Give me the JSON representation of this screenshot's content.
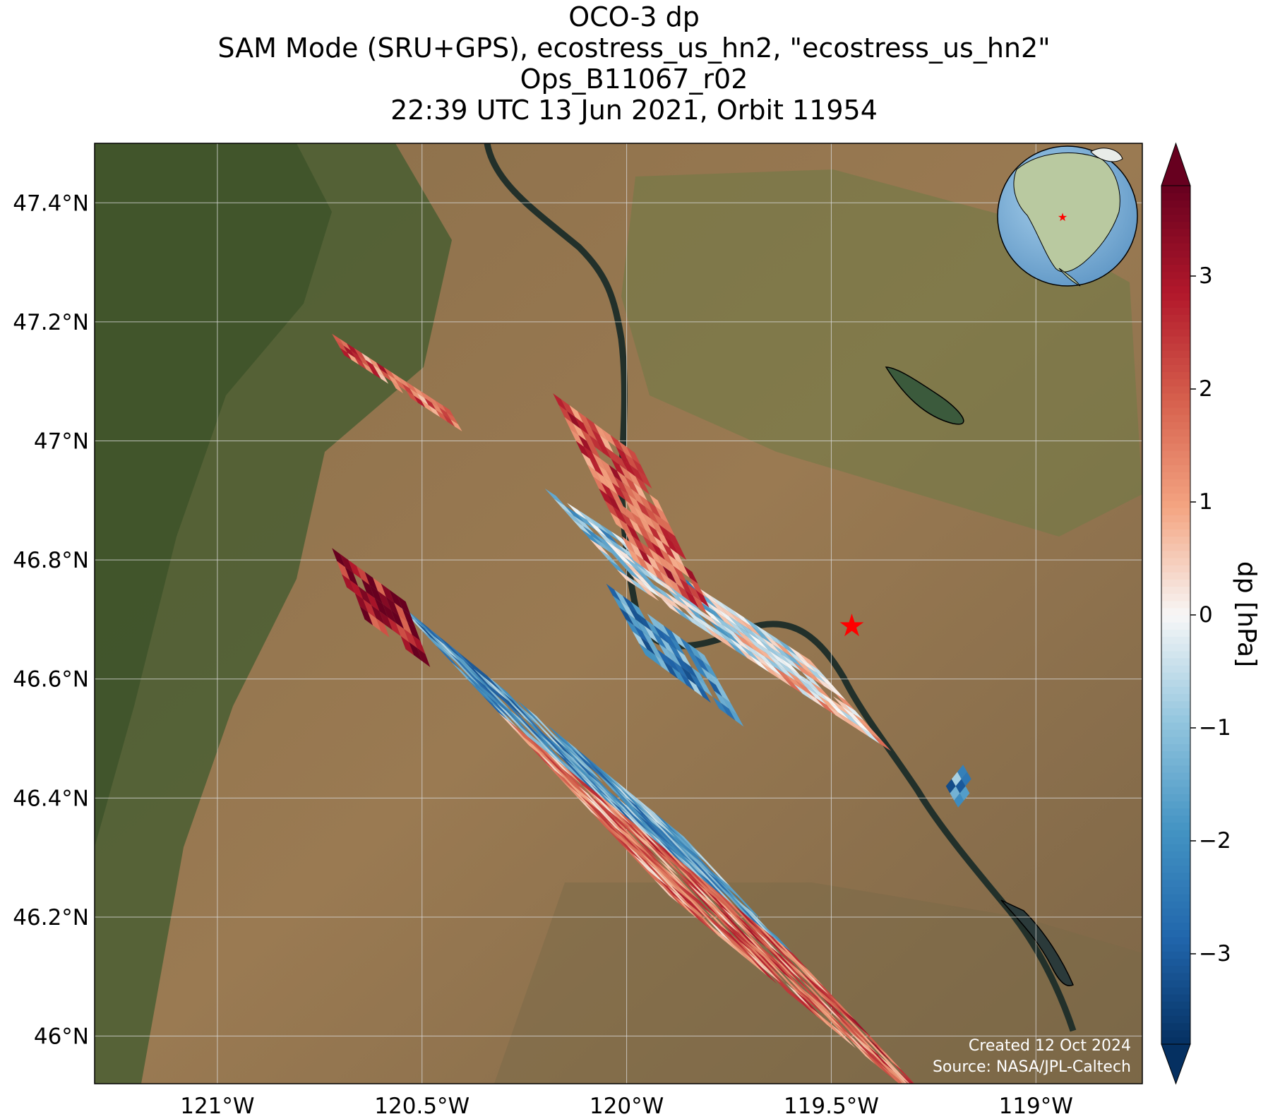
{
  "title": {
    "line1": "OCO-3 dp",
    "line2": "SAM Mode (SRU+GPS), ecostress_us_hn2, \"ecostress_us_hn2\"",
    "line3": "Ops_B11067_r02",
    "line4": "22:39 UTC 13 Jun 2021, Orbit 11954"
  },
  "credits": {
    "created": "Created 12 Oct 2024",
    "source": "Source: NASA/JPL-Caltech"
  },
  "colorbar": {
    "label": "dp [hPa]",
    "ticks": [
      {
        "value": 3,
        "text": "3"
      },
      {
        "value": 2,
        "text": "2"
      },
      {
        "value": 1,
        "text": "1"
      },
      {
        "value": 0,
        "text": "0"
      },
      {
        "value": -1,
        "text": "−1"
      },
      {
        "value": -2,
        "text": "−2"
      },
      {
        "value": -3,
        "text": "−3"
      }
    ],
    "range": [
      -3.8,
      3.8
    ],
    "colors": [
      "#053061",
      "#2166ac",
      "#4393c3",
      "#92c5de",
      "#f7f7f7",
      "#f4a582",
      "#d6604d",
      "#b2182b",
      "#67001f"
    ]
  },
  "map": {
    "lon_range": [
      -121.3,
      -118.74
    ],
    "lat_range": [
      45.92,
      47.5
    ],
    "lon_ticks": [
      {
        "value": -121.0,
        "text": "121°W"
      },
      {
        "value": -120.5,
        "text": "120.5°W"
      },
      {
        "value": -120.0,
        "text": "120°W"
      },
      {
        "value": -119.5,
        "text": "119.5°W"
      },
      {
        "value": -119.0,
        "text": "119°W"
      }
    ],
    "lat_ticks": [
      {
        "value": 47.4,
        "text": "47.4°N"
      },
      {
        "value": 47.2,
        "text": "47.2°N"
      },
      {
        "value": 47.0,
        "text": "47°N"
      },
      {
        "value": 46.8,
        "text": "46.8°N"
      },
      {
        "value": 46.6,
        "text": "46.6°N"
      },
      {
        "value": 46.4,
        "text": "46.4°N"
      },
      {
        "value": 46.2,
        "text": "46.2°N"
      },
      {
        "value": 46.0,
        "text": "46°N"
      }
    ],
    "target_marker": {
      "lon": -119.45,
      "lat": 46.69,
      "color": "#ff0000"
    },
    "grid": true
  }
}
